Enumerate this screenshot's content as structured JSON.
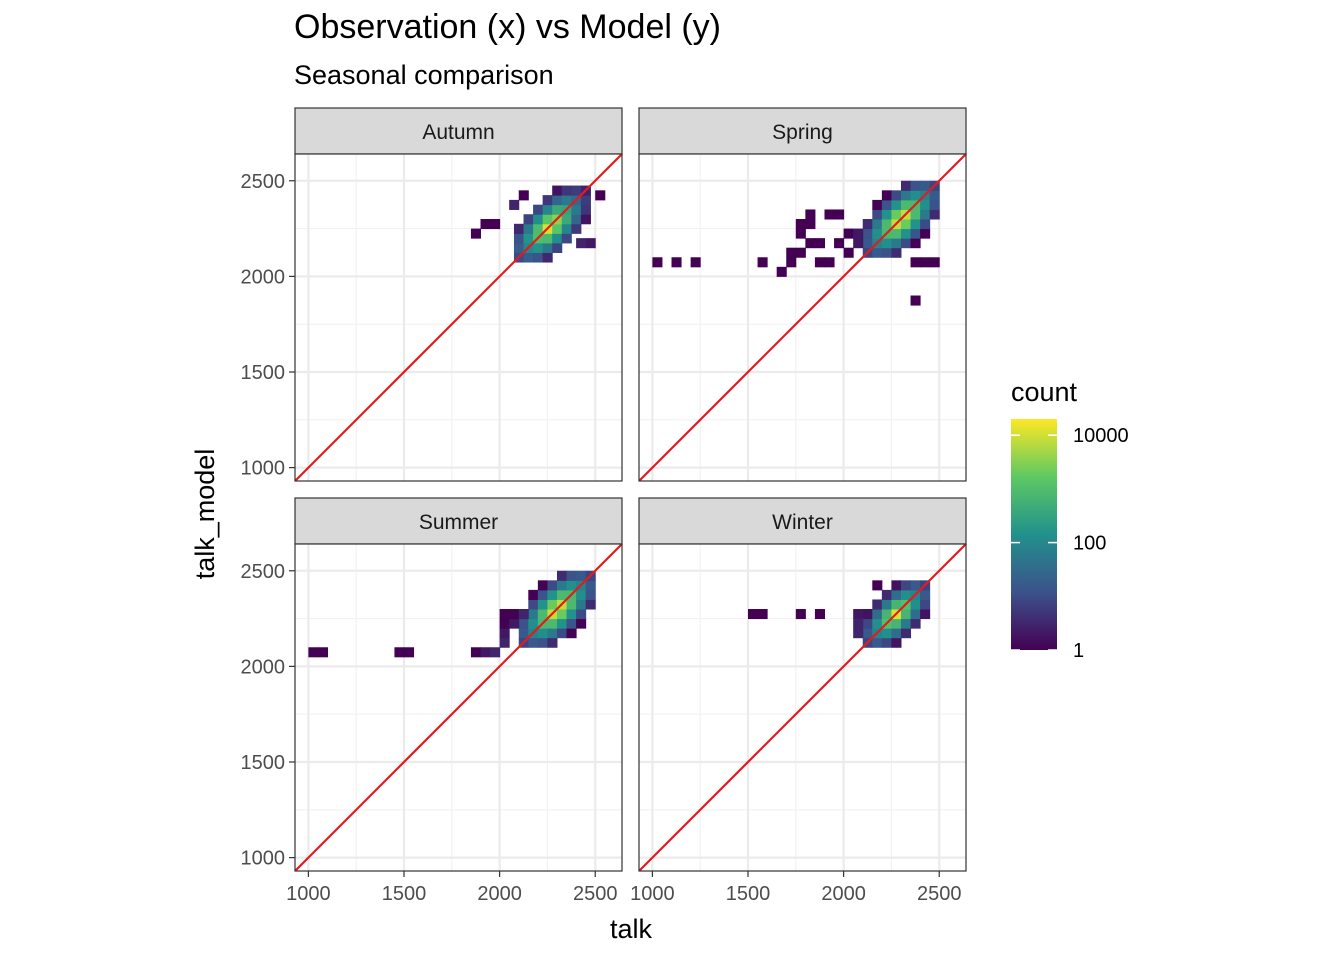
{
  "title": "Observation (x) vs Model (y)",
  "subtitle": "Seasonal comparison",
  "chart_data": {
    "type": "heatmap",
    "subtype": "bin2d faceted",
    "title": "Observation (x) vs Model (y)",
    "subtitle": "Seasonal comparison",
    "xlabel": "talk",
    "ylabel": "talk_model",
    "xlim": [
      930,
      2640
    ],
    "ylim": [
      930,
      2640
    ],
    "x_ticks": [
      1000,
      1500,
      2000,
      2500
    ],
    "y_ticks": [
      1000,
      1500,
      2000,
      2500
    ],
    "x_tick_labels": [
      "1000",
      "1500",
      "2000",
      "2500"
    ],
    "y_tick_labels": [
      "1000",
      "1500",
      "2000",
      "2500"
    ],
    "bin_width": 50,
    "identity_line": {
      "slope": 1,
      "intercept": 0,
      "color": "#e41a1c"
    },
    "legend": {
      "title": "count",
      "scale": "log10",
      "palette": [
        "#440154",
        "#3b528b",
        "#21918c",
        "#5ec962",
        "#fde725"
      ],
      "breaks": [
        1,
        100,
        10000
      ],
      "labels": [
        "1",
        "100",
        "10000"
      ],
      "max": 20000,
      "position": "right"
    },
    "facets": [
      {
        "label": "Autumn",
        "core": {
          "x0": 2075,
          "x1": 2450,
          "y0": 2075,
          "y1": 2450,
          "center_log": 4.3,
          "spread": 220
        },
        "cells": [
          [
            2525,
            2425,
            1
          ],
          [
            1975,
            2275,
            1
          ],
          [
            1925,
            2275,
            1
          ],
          [
            1875,
            2225,
            1
          ],
          [
            2475,
            2175,
            2
          ],
          [
            2425,
            2175,
            3
          ],
          [
            2075,
            2375,
            3
          ],
          [
            2125,
            2425,
            1
          ]
        ]
      },
      {
        "label": "Spring",
        "core": {
          "x0": 2100,
          "x1": 2500,
          "y0": 2100,
          "y1": 2500,
          "center_log": 4.4,
          "spread": 230
        },
        "cells": [
          [
            1025,
            2075,
            1
          ],
          [
            1125,
            2075,
            1
          ],
          [
            1225,
            2075,
            1
          ],
          [
            1575,
            2075,
            1
          ],
          [
            1675,
            2025,
            1
          ],
          [
            1725,
            2075,
            1
          ],
          [
            1875,
            2075,
            1
          ],
          [
            1925,
            2075,
            1
          ],
          [
            2375,
            1875,
            1
          ],
          [
            1775,
            2275,
            1
          ],
          [
            1825,
            2275,
            1
          ],
          [
            1825,
            2325,
            1
          ],
          [
            1925,
            2325,
            1
          ],
          [
            1975,
            2325,
            1
          ],
          [
            1775,
            2225,
            1
          ],
          [
            1825,
            2175,
            1
          ],
          [
            1875,
            2175,
            1
          ],
          [
            1975,
            2175,
            1
          ],
          [
            1775,
            2125,
            1
          ],
          [
            2025,
            2225,
            1
          ],
          [
            2025,
            2125,
            1
          ],
          [
            2075,
            2225,
            2
          ],
          [
            2075,
            2175,
            2
          ],
          [
            1725,
            2125,
            1
          ],
          [
            2475,
            2075,
            1
          ],
          [
            2375,
            2075,
            1
          ],
          [
            2425,
            2075,
            1
          ]
        ]
      },
      {
        "label": "Summer",
        "core": {
          "x0": 2100,
          "x1": 2500,
          "y0": 2100,
          "y1": 2500,
          "center_log": 4.4,
          "spread": 230
        },
        "cells": [
          [
            1025,
            2075,
            1
          ],
          [
            1075,
            2075,
            1
          ],
          [
            1475,
            2075,
            1
          ],
          [
            1525,
            2075,
            1
          ],
          [
            1875,
            2075,
            1
          ],
          [
            1925,
            2075,
            2
          ],
          [
            1975,
            2075,
            3
          ],
          [
            2025,
            2125,
            3
          ],
          [
            2025,
            2175,
            2
          ],
          [
            2025,
            2225,
            1
          ],
          [
            2075,
            2225,
            2
          ],
          [
            2075,
            2275,
            1
          ],
          [
            2125,
            2275,
            3
          ],
          [
            2025,
            2275,
            1
          ]
        ]
      },
      {
        "label": "Winter",
        "core": {
          "x0": 2100,
          "x1": 2450,
          "y0": 2100,
          "y1": 2450,
          "center_log": 4.1,
          "spread": 200
        },
        "cells": [
          [
            1525,
            2275,
            1
          ],
          [
            1575,
            2275,
            1
          ],
          [
            1775,
            2275,
            1
          ],
          [
            1875,
            2275,
            1
          ],
          [
            2075,
            2275,
            2
          ],
          [
            2175,
            2425,
            1
          ],
          [
            2075,
            2225,
            3
          ],
          [
            2075,
            2175,
            3
          ]
        ]
      }
    ]
  }
}
